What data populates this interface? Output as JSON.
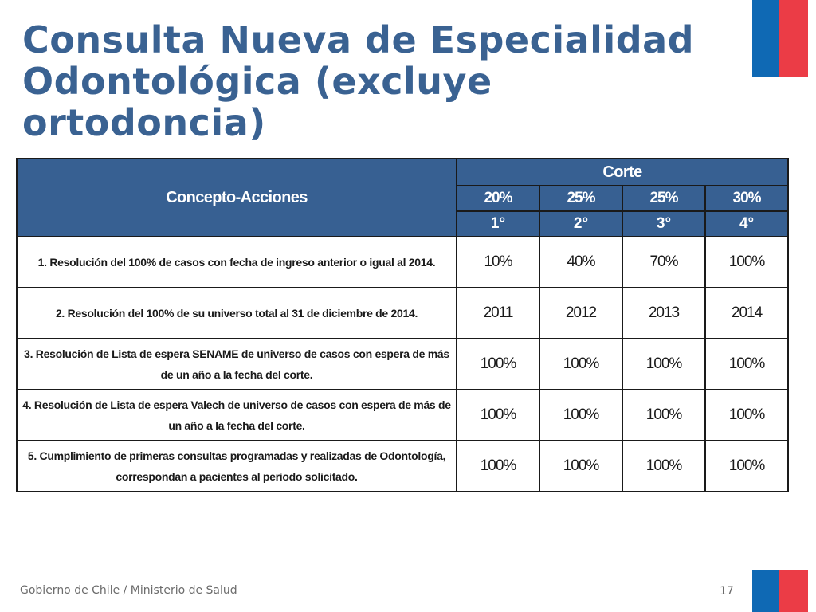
{
  "slide": {
    "title_line1": "Consulta Nueva de Especialidad",
    "title_line2": "Odontológica (excluye ortodoncia)",
    "footer": "Gobierno de Chile / Ministerio de Salud",
    "page_number": "17",
    "colors": {
      "title": "#3a6292",
      "header_bg": "#376092",
      "flag_blue": "#0f69b4",
      "flag_red": "#eb3c46"
    }
  },
  "table": {
    "concept_header": "Concepto-Acciones",
    "corte_header": "Corte",
    "percent_headers": [
      "20%",
      "25%",
      "25%",
      "30%"
    ],
    "cut_numbers": [
      "1°",
      "2°",
      "3°",
      "4°"
    ],
    "rows": [
      {
        "label": "1. Resolución del 100% de casos con fecha de ingreso anterior o igual al 2014.",
        "values": [
          "10%",
          "40%",
          "70%",
          "100%"
        ]
      },
      {
        "label": "2. Resolución del 100% de su universo total al 31 de diciembre de 2014.",
        "values": [
          "2011",
          "2012",
          "2013",
          "2014"
        ]
      },
      {
        "label": "3. Resolución de Lista de espera SENAME de universo de casos con espera de más de un año a la fecha del corte.",
        "values": [
          "100%",
          "100%",
          "100%",
          "100%"
        ]
      },
      {
        "label": "4. Resolución de Lista de espera Valech de universo de casos con espera de más de un año a la fecha del corte.",
        "values": [
          "100%",
          "100%",
          "100%",
          "100%"
        ]
      },
      {
        "label": "5. Cumplimiento de primeras consultas programadas y realizadas de Odontología, correspondan a pacientes al periodo solicitado.",
        "values": [
          "100%",
          "100%",
          "100%",
          "100%"
        ]
      }
    ]
  }
}
